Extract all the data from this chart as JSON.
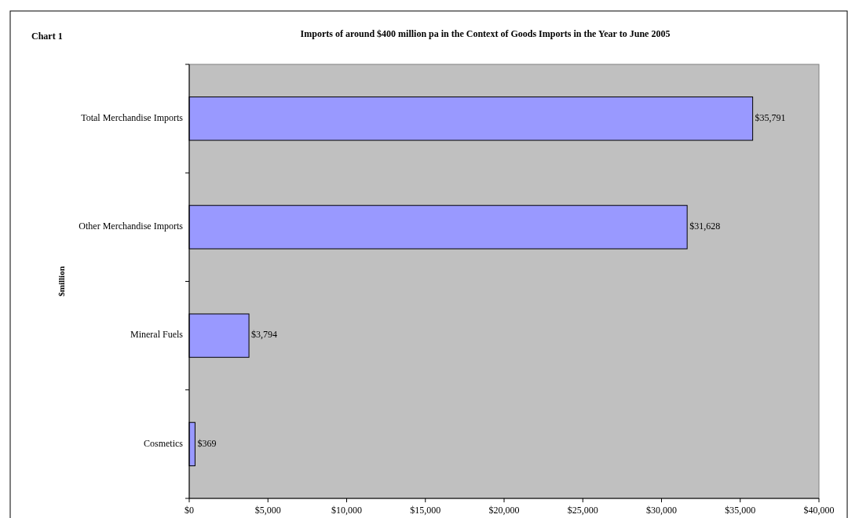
{
  "chart_data": {
    "type": "bar",
    "orientation": "horizontal",
    "title": "Imports of around $400 million pa in the Context of Goods Imports in the Year to June 2005",
    "ylabel": "$million",
    "annotations": [
      "Chart 1"
    ],
    "categories": [
      "Total Merchandise Imports",
      "Other Merchandise Imports",
      "Mineral Fuels",
      "Cosmetics"
    ],
    "values": [
      35791,
      31628,
      3794,
      369
    ],
    "color": "#9999ff",
    "value_labels": [
      "$35,791",
      "$31,628",
      "$3,794",
      "$369"
    ],
    "xlim": [
      0,
      40000
    ],
    "xticks": [
      {
        "value": 0,
        "label": "$0"
      },
      {
        "value": 5000,
        "label": "$5,000"
      },
      {
        "value": 10000,
        "label": "$10,000"
      },
      {
        "value": 15000,
        "label": "$15,000"
      },
      {
        "value": 20000,
        "label": "$20,000"
      },
      {
        "value": 25000,
        "label": "$25,000"
      },
      {
        "value": 30000,
        "label": "$30,000"
      },
      {
        "value": 35000,
        "label": "$35,000"
      },
      {
        "value": 40000,
        "label": "$40,000"
      }
    ],
    "grid": false
  }
}
